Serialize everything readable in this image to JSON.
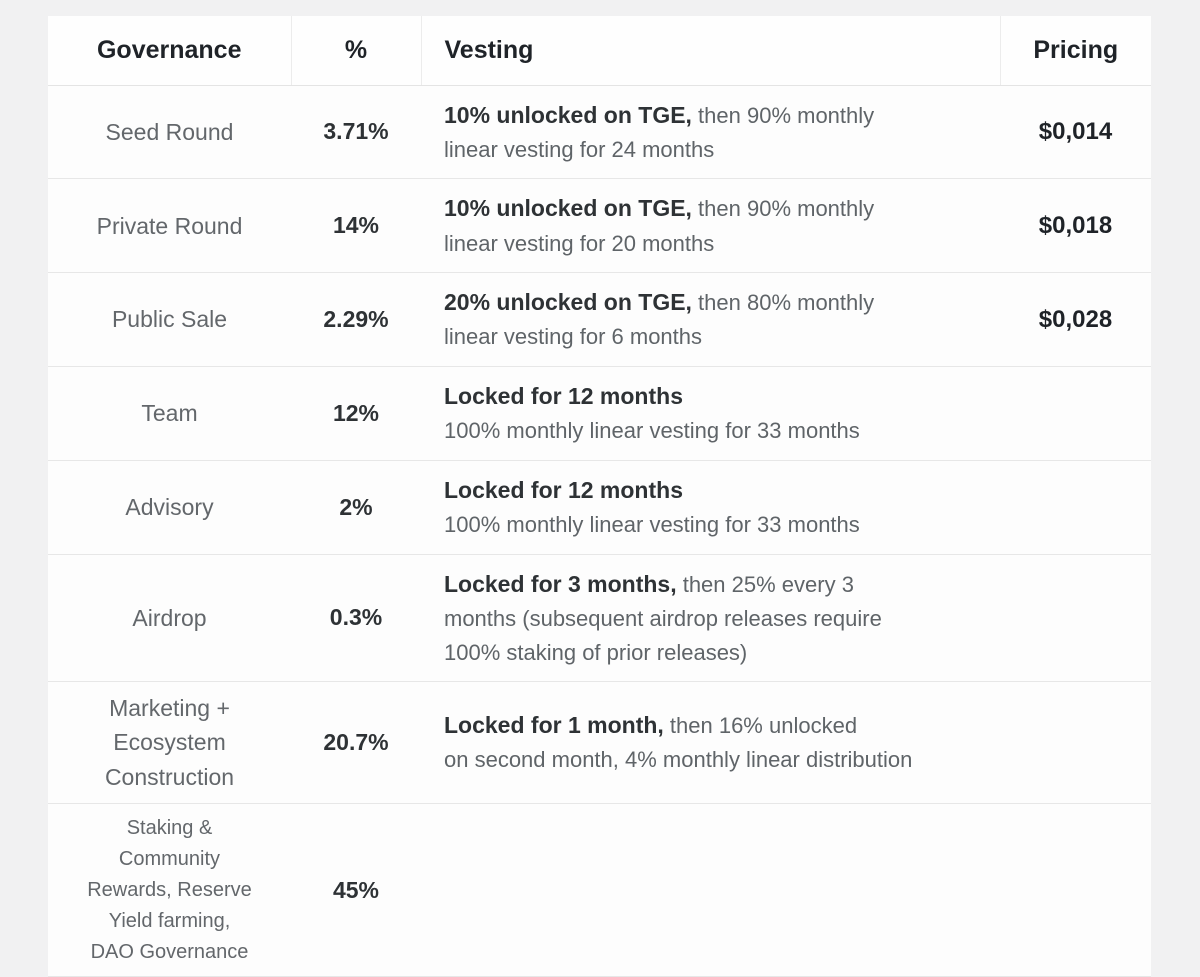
{
  "colors": {
    "page_background": "#f1f1f2",
    "table_background": "#fdfdfd",
    "header_text": "#1f2328",
    "primary_text": "#2e3235",
    "secondary_text": "#63676b",
    "row_divider": "#e7e7e7"
  },
  "chart_data": {
    "type": "table",
    "columns": [
      "Governance",
      "%",
      "Vesting",
      "Pricing"
    ],
    "rows": [
      {
        "governance": "Seed Round",
        "percent": "3.71%",
        "vesting_bold": "10% unlocked on TGE,",
        "vesting_rest": " then 90% monthly\nlinear vesting for 24 months",
        "pricing": "$0,014"
      },
      {
        "governance": "Private Round",
        "percent": "14%",
        "vesting_bold": "10% unlocked on TGE,",
        "vesting_rest": " then 90% monthly\nlinear vesting for 20 months",
        "pricing": "$0,018"
      },
      {
        "governance": "Public Sale",
        "percent": "2.29%",
        "vesting_bold": "20% unlocked on TGE,",
        "vesting_rest": " then 80% monthly\nlinear vesting for 6 months",
        "pricing": "$0,028"
      },
      {
        "governance": "Team",
        "percent": "12%",
        "vesting_bold": "Locked for 12 months",
        "vesting_rest": "\n100% monthly linear vesting for 33 months",
        "pricing": ""
      },
      {
        "governance": "Advisory",
        "percent": "2%",
        "vesting_bold": "Locked for 12 months",
        "vesting_rest": "\n100% monthly linear vesting for 33 months",
        "pricing": ""
      },
      {
        "governance": "Airdrop",
        "percent": "0.3%",
        "vesting_bold": "Locked for 3 months,",
        "vesting_rest": " then 25% every 3\nmonths (subsequent airdrop releases require\n100% staking of prior releases)",
        "pricing": ""
      },
      {
        "governance": "Marketing +\nEcosystem\nConstruction",
        "percent": "20.7%",
        "vesting_bold": "Locked for 1 month,",
        "vesting_rest": " then 16% unlocked\non second month, 4% monthly linear distribution",
        "pricing": ""
      },
      {
        "governance": "Staking &\nCommunity\nRewards, Reserve\nYield farming,\nDAO Governance",
        "percent": "45%",
        "vesting_bold": "",
        "vesting_rest": "",
        "pricing": ""
      }
    ]
  }
}
